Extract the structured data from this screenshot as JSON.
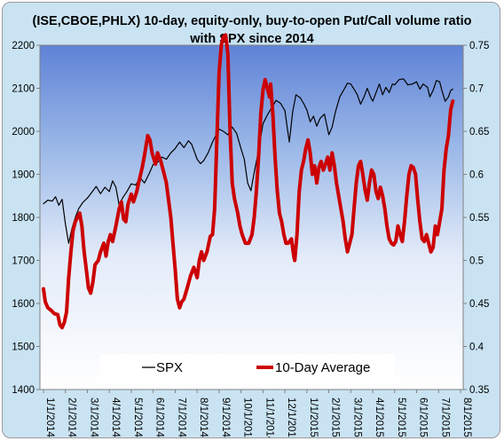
{
  "chart_data": {
    "type": "line",
    "title_lines": [
      "(ISE,CBOE,PHLX) 10-day, equity-only, buy-to-open Put/Call volume ratio",
      "with SPX since 2014"
    ],
    "x_tick_labels": [
      "1/1/2014",
      "2/1/2014",
      "3/1/2014",
      "4/1/2014",
      "5/1/2014",
      "6/1/2014",
      "7/1/2014",
      "8/1/2014",
      "9/1/2014",
      "10/1/2014",
      "11/1/2014",
      "12/1/2014",
      "1/1/2015",
      "2/1/2015",
      "3/1/2015",
      "4/1/2015",
      "5/1/2015",
      "6/1/2015",
      "7/1/2015",
      "8/1/2015"
    ],
    "x_range_months": [
      0,
      19
    ],
    "y_left": {
      "min": 1400,
      "max": 2200,
      "ticks": [
        "1400",
        "1500",
        "1600",
        "1700",
        "1800",
        "1900",
        "2000",
        "2100",
        "2200"
      ]
    },
    "y_right": {
      "min": 0.35,
      "max": 0.75,
      "ticks": [
        "0.35",
        "0.4",
        "0.45",
        "0.5",
        "0.55",
        "0.6",
        "0.65",
        "0.7",
        "0.75"
      ]
    },
    "grid": false,
    "legend_position": "bottom",
    "series": [
      {
        "name": "SPX",
        "axis": "left",
        "color": "#000000",
        "points": [
          [
            0.0,
            1832
          ],
          [
            0.2,
            1840
          ],
          [
            0.4,
            1838
          ],
          [
            0.55,
            1848
          ],
          [
            0.7,
            1828
          ],
          [
            0.85,
            1842
          ],
          [
            1.0,
            1785
          ],
          [
            1.15,
            1740
          ],
          [
            1.3,
            1775
          ],
          [
            1.45,
            1800
          ],
          [
            1.6,
            1820
          ],
          [
            1.8,
            1835
          ],
          [
            2.0,
            1845
          ],
          [
            2.2,
            1858
          ],
          [
            2.4,
            1872
          ],
          [
            2.6,
            1855
          ],
          [
            2.8,
            1870
          ],
          [
            3.0,
            1860
          ],
          [
            3.15,
            1885
          ],
          [
            3.3,
            1870
          ],
          [
            3.45,
            1828
          ],
          [
            3.6,
            1845
          ],
          [
            3.8,
            1860
          ],
          [
            4.0,
            1878
          ],
          [
            4.2,
            1875
          ],
          [
            4.4,
            1892
          ],
          [
            4.6,
            1880
          ],
          [
            4.8,
            1900
          ],
          [
            5.0,
            1923
          ],
          [
            5.2,
            1928
          ],
          [
            5.4,
            1940
          ],
          [
            5.6,
            1935
          ],
          [
            5.8,
            1950
          ],
          [
            6.0,
            1960
          ],
          [
            6.2,
            1975
          ],
          [
            6.4,
            1962
          ],
          [
            6.6,
            1978
          ],
          [
            6.75,
            1970
          ],
          [
            7.0,
            1935
          ],
          [
            7.15,
            1925
          ],
          [
            7.3,
            1932
          ],
          [
            7.5,
            1950
          ],
          [
            7.7,
            1975
          ],
          [
            7.9,
            1995
          ],
          [
            8.0,
            2005
          ],
          [
            8.2,
            2000
          ],
          [
            8.4,
            1992
          ],
          [
            8.6,
            2010
          ],
          [
            8.8,
            1995
          ],
          [
            9.0,
            1960
          ],
          [
            9.15,
            1935
          ],
          [
            9.3,
            1880
          ],
          [
            9.45,
            1862
          ],
          [
            9.6,
            1905
          ],
          [
            9.8,
            1955
          ],
          [
            10.0,
            2018
          ],
          [
            10.2,
            2038
          ],
          [
            10.4,
            2055
          ],
          [
            10.6,
            2072
          ],
          [
            10.8,
            2065
          ],
          [
            11.0,
            2048
          ],
          [
            11.1,
            2010
          ],
          [
            11.2,
            1975
          ],
          [
            11.35,
            2045
          ],
          [
            11.5,
            2085
          ],
          [
            11.7,
            2078
          ],
          [
            11.85,
            2065
          ],
          [
            12.0,
            2050
          ],
          [
            12.15,
            2022
          ],
          [
            12.3,
            2035
          ],
          [
            12.45,
            2012
          ],
          [
            12.6,
            2030
          ],
          [
            12.8,
            2040
          ],
          [
            13.0,
            1992
          ],
          [
            13.15,
            2010
          ],
          [
            13.3,
            2045
          ],
          [
            13.5,
            2080
          ],
          [
            13.7,
            2098
          ],
          [
            13.85,
            2112
          ],
          [
            14.0,
            2110
          ],
          [
            14.15,
            2098
          ],
          [
            14.3,
            2085
          ],
          [
            14.45,
            2063
          ],
          [
            14.6,
            2080
          ],
          [
            14.75,
            2100
          ],
          [
            14.9,
            2080
          ],
          [
            15.0,
            2070
          ],
          [
            15.15,
            2090
          ],
          [
            15.3,
            2110
          ],
          [
            15.45,
            2085
          ],
          [
            15.6,
            2102
          ],
          [
            15.75,
            2090
          ],
          [
            15.9,
            2110
          ],
          [
            16.0,
            2108
          ],
          [
            16.2,
            2120
          ],
          [
            16.4,
            2122
          ],
          [
            16.6,
            2108
          ],
          [
            16.8,
            2110
          ],
          [
            17.0,
            2115
          ],
          [
            17.15,
            2098
          ],
          [
            17.3,
            2110
          ],
          [
            17.5,
            2102
          ],
          [
            17.6,
            2080
          ],
          [
            17.75,
            2095
          ],
          [
            17.9,
            2118
          ],
          [
            18.05,
            2115
          ],
          [
            18.15,
            2095
          ],
          [
            18.3,
            2070
          ],
          [
            18.45,
            2080
          ],
          [
            18.55,
            2095
          ],
          [
            18.65,
            2098
          ]
        ]
      },
      {
        "name": "10-Day Average",
        "axis": "right",
        "color": "#cc0000",
        "points": [
          [
            0.0,
            0.467
          ],
          [
            0.08,
            0.452
          ],
          [
            0.2,
            0.445
          ],
          [
            0.35,
            0.442
          ],
          [
            0.5,
            0.438
          ],
          [
            0.65,
            0.437
          ],
          [
            0.75,
            0.425
          ],
          [
            0.85,
            0.422
          ],
          [
            0.95,
            0.428
          ],
          [
            1.05,
            0.44
          ],
          [
            1.15,
            0.48
          ],
          [
            1.25,
            0.51
          ],
          [
            1.35,
            0.535
          ],
          [
            1.45,
            0.545
          ],
          [
            1.55,
            0.55
          ],
          [
            1.65,
            0.555
          ],
          [
            1.75,
            0.54
          ],
          [
            1.85,
            0.51
          ],
          [
            1.95,
            0.49
          ],
          [
            2.05,
            0.468
          ],
          [
            2.15,
            0.462
          ],
          [
            2.25,
            0.475
          ],
          [
            2.35,
            0.495
          ],
          [
            2.5,
            0.5
          ],
          [
            2.6,
            0.51
          ],
          [
            2.75,
            0.52
          ],
          [
            2.85,
            0.505
          ],
          [
            2.95,
            0.522
          ],
          [
            3.05,
            0.53
          ],
          [
            3.15,
            0.522
          ],
          [
            3.3,
            0.54
          ],
          [
            3.45,
            0.56
          ],
          [
            3.55,
            0.568
          ],
          [
            3.65,
            0.548
          ],
          [
            3.75,
            0.545
          ],
          [
            3.85,
            0.565
          ],
          [
            4.0,
            0.577
          ],
          [
            4.1,
            0.568
          ],
          [
            4.25,
            0.58
          ],
          [
            4.35,
            0.592
          ],
          [
            4.5,
            0.608
          ],
          [
            4.6,
            0.622
          ],
          [
            4.75,
            0.645
          ],
          [
            4.85,
            0.64
          ],
          [
            4.95,
            0.625
          ],
          [
            5.1,
            0.612
          ],
          [
            5.2,
            0.625
          ],
          [
            5.35,
            0.615
          ],
          [
            5.5,
            0.6
          ],
          [
            5.6,
            0.59
          ],
          [
            5.7,
            0.57
          ],
          [
            5.8,
            0.55
          ],
          [
            5.9,
            0.52
          ],
          [
            6.0,
            0.49
          ],
          [
            6.1,
            0.455
          ],
          [
            6.2,
            0.445
          ],
          [
            6.3,
            0.452
          ],
          [
            6.4,
            0.455
          ],
          [
            6.55,
            0.468
          ],
          [
            6.7,
            0.482
          ],
          [
            6.85,
            0.492
          ],
          [
            7.0,
            0.48
          ],
          [
            7.1,
            0.5
          ],
          [
            7.2,
            0.51
          ],
          [
            7.3,
            0.5
          ],
          [
            7.45,
            0.51
          ],
          [
            7.6,
            0.528
          ],
          [
            7.7,
            0.53
          ],
          [
            7.8,
            0.56
          ],
          [
            7.9,
            0.64
          ],
          [
            8.0,
            0.718
          ],
          [
            8.1,
            0.75
          ],
          [
            8.2,
            0.76
          ],
          [
            8.3,
            0.762
          ],
          [
            8.4,
            0.74
          ],
          [
            8.5,
            0.65
          ],
          [
            8.6,
            0.59
          ],
          [
            8.7,
            0.572
          ],
          [
            8.85,
            0.555
          ],
          [
            8.95,
            0.54
          ],
          [
            9.05,
            0.53
          ],
          [
            9.2,
            0.52
          ],
          [
            9.35,
            0.52
          ],
          [
            9.5,
            0.53
          ],
          [
            9.6,
            0.55
          ],
          [
            9.7,
            0.58
          ],
          [
            9.8,
            0.62
          ],
          [
            9.9,
            0.67
          ],
          [
            10.0,
            0.698
          ],
          [
            10.1,
            0.71
          ],
          [
            10.2,
            0.7
          ],
          [
            10.3,
            0.69
          ],
          [
            10.35,
            0.705
          ],
          [
            10.45,
            0.67
          ],
          [
            10.55,
            0.62
          ],
          [
            10.65,
            0.582
          ],
          [
            10.75,
            0.555
          ],
          [
            10.85,
            0.545
          ],
          [
            10.95,
            0.53
          ],
          [
            11.05,
            0.52
          ],
          [
            11.15,
            0.52
          ],
          [
            11.3,
            0.525
          ],
          [
            11.4,
            0.505
          ],
          [
            11.45,
            0.5
          ],
          [
            11.55,
            0.53
          ],
          [
            11.65,
            0.58
          ],
          [
            11.75,
            0.605
          ],
          [
            11.85,
            0.615
          ],
          [
            11.95,
            0.63
          ],
          [
            12.05,
            0.64
          ],
          [
            12.15,
            0.625
          ],
          [
            12.25,
            0.6
          ],
          [
            12.35,
            0.61
          ],
          [
            12.45,
            0.59
          ],
          [
            12.55,
            0.608
          ],
          [
            12.65,
            0.615
          ],
          [
            12.75,
            0.605
          ],
          [
            12.85,
            0.612
          ],
          [
            12.95,
            0.62
          ],
          [
            13.05,
            0.605
          ],
          [
            13.15,
            0.625
          ],
          [
            13.25,
            0.61
          ],
          [
            13.35,
            0.59
          ],
          [
            13.45,
            0.575
          ],
          [
            13.55,
            0.56
          ],
          [
            13.65,
            0.545
          ],
          [
            13.75,
            0.525
          ],
          [
            13.85,
            0.51
          ],
          [
            13.95,
            0.52
          ],
          [
            14.05,
            0.53
          ],
          [
            14.15,
            0.56
          ],
          [
            14.25,
            0.59
          ],
          [
            14.35,
            0.61
          ],
          [
            14.45,
            0.615
          ],
          [
            14.55,
            0.6
          ],
          [
            14.65,
            0.582
          ],
          [
            14.75,
            0.57
          ],
          [
            14.85,
            0.59
          ],
          [
            14.95,
            0.605
          ],
          [
            15.05,
            0.6
          ],
          [
            15.15,
            0.58
          ],
          [
            15.25,
            0.572
          ],
          [
            15.35,
            0.585
          ],
          [
            15.45,
            0.575
          ],
          [
            15.55,
            0.56
          ],
          [
            15.65,
            0.54
          ],
          [
            15.75,
            0.525
          ],
          [
            15.85,
            0.52
          ],
          [
            15.95,
            0.518
          ],
          [
            16.05,
            0.522
          ],
          [
            16.15,
            0.54
          ],
          [
            16.25,
            0.53
          ],
          [
            16.35,
            0.522
          ],
          [
            16.45,
            0.545
          ],
          [
            16.55,
            0.575
          ],
          [
            16.65,
            0.6
          ],
          [
            16.75,
            0.61
          ],
          [
            16.85,
            0.608
          ],
          [
            16.95,
            0.6
          ],
          [
            17.05,
            0.57
          ],
          [
            17.15,
            0.545
          ],
          [
            17.25,
            0.525
          ],
          [
            17.35,
            0.522
          ],
          [
            17.45,
            0.53
          ],
          [
            17.55,
            0.52
          ],
          [
            17.65,
            0.51
          ],
          [
            17.75,
            0.515
          ],
          [
            17.85,
            0.54
          ],
          [
            17.95,
            0.53
          ],
          [
            18.05,
            0.545
          ],
          [
            18.15,
            0.56
          ],
          [
            18.25,
            0.605
          ],
          [
            18.35,
            0.63
          ],
          [
            18.45,
            0.645
          ],
          [
            18.55,
            0.675
          ],
          [
            18.65,
            0.685
          ]
        ]
      }
    ]
  }
}
